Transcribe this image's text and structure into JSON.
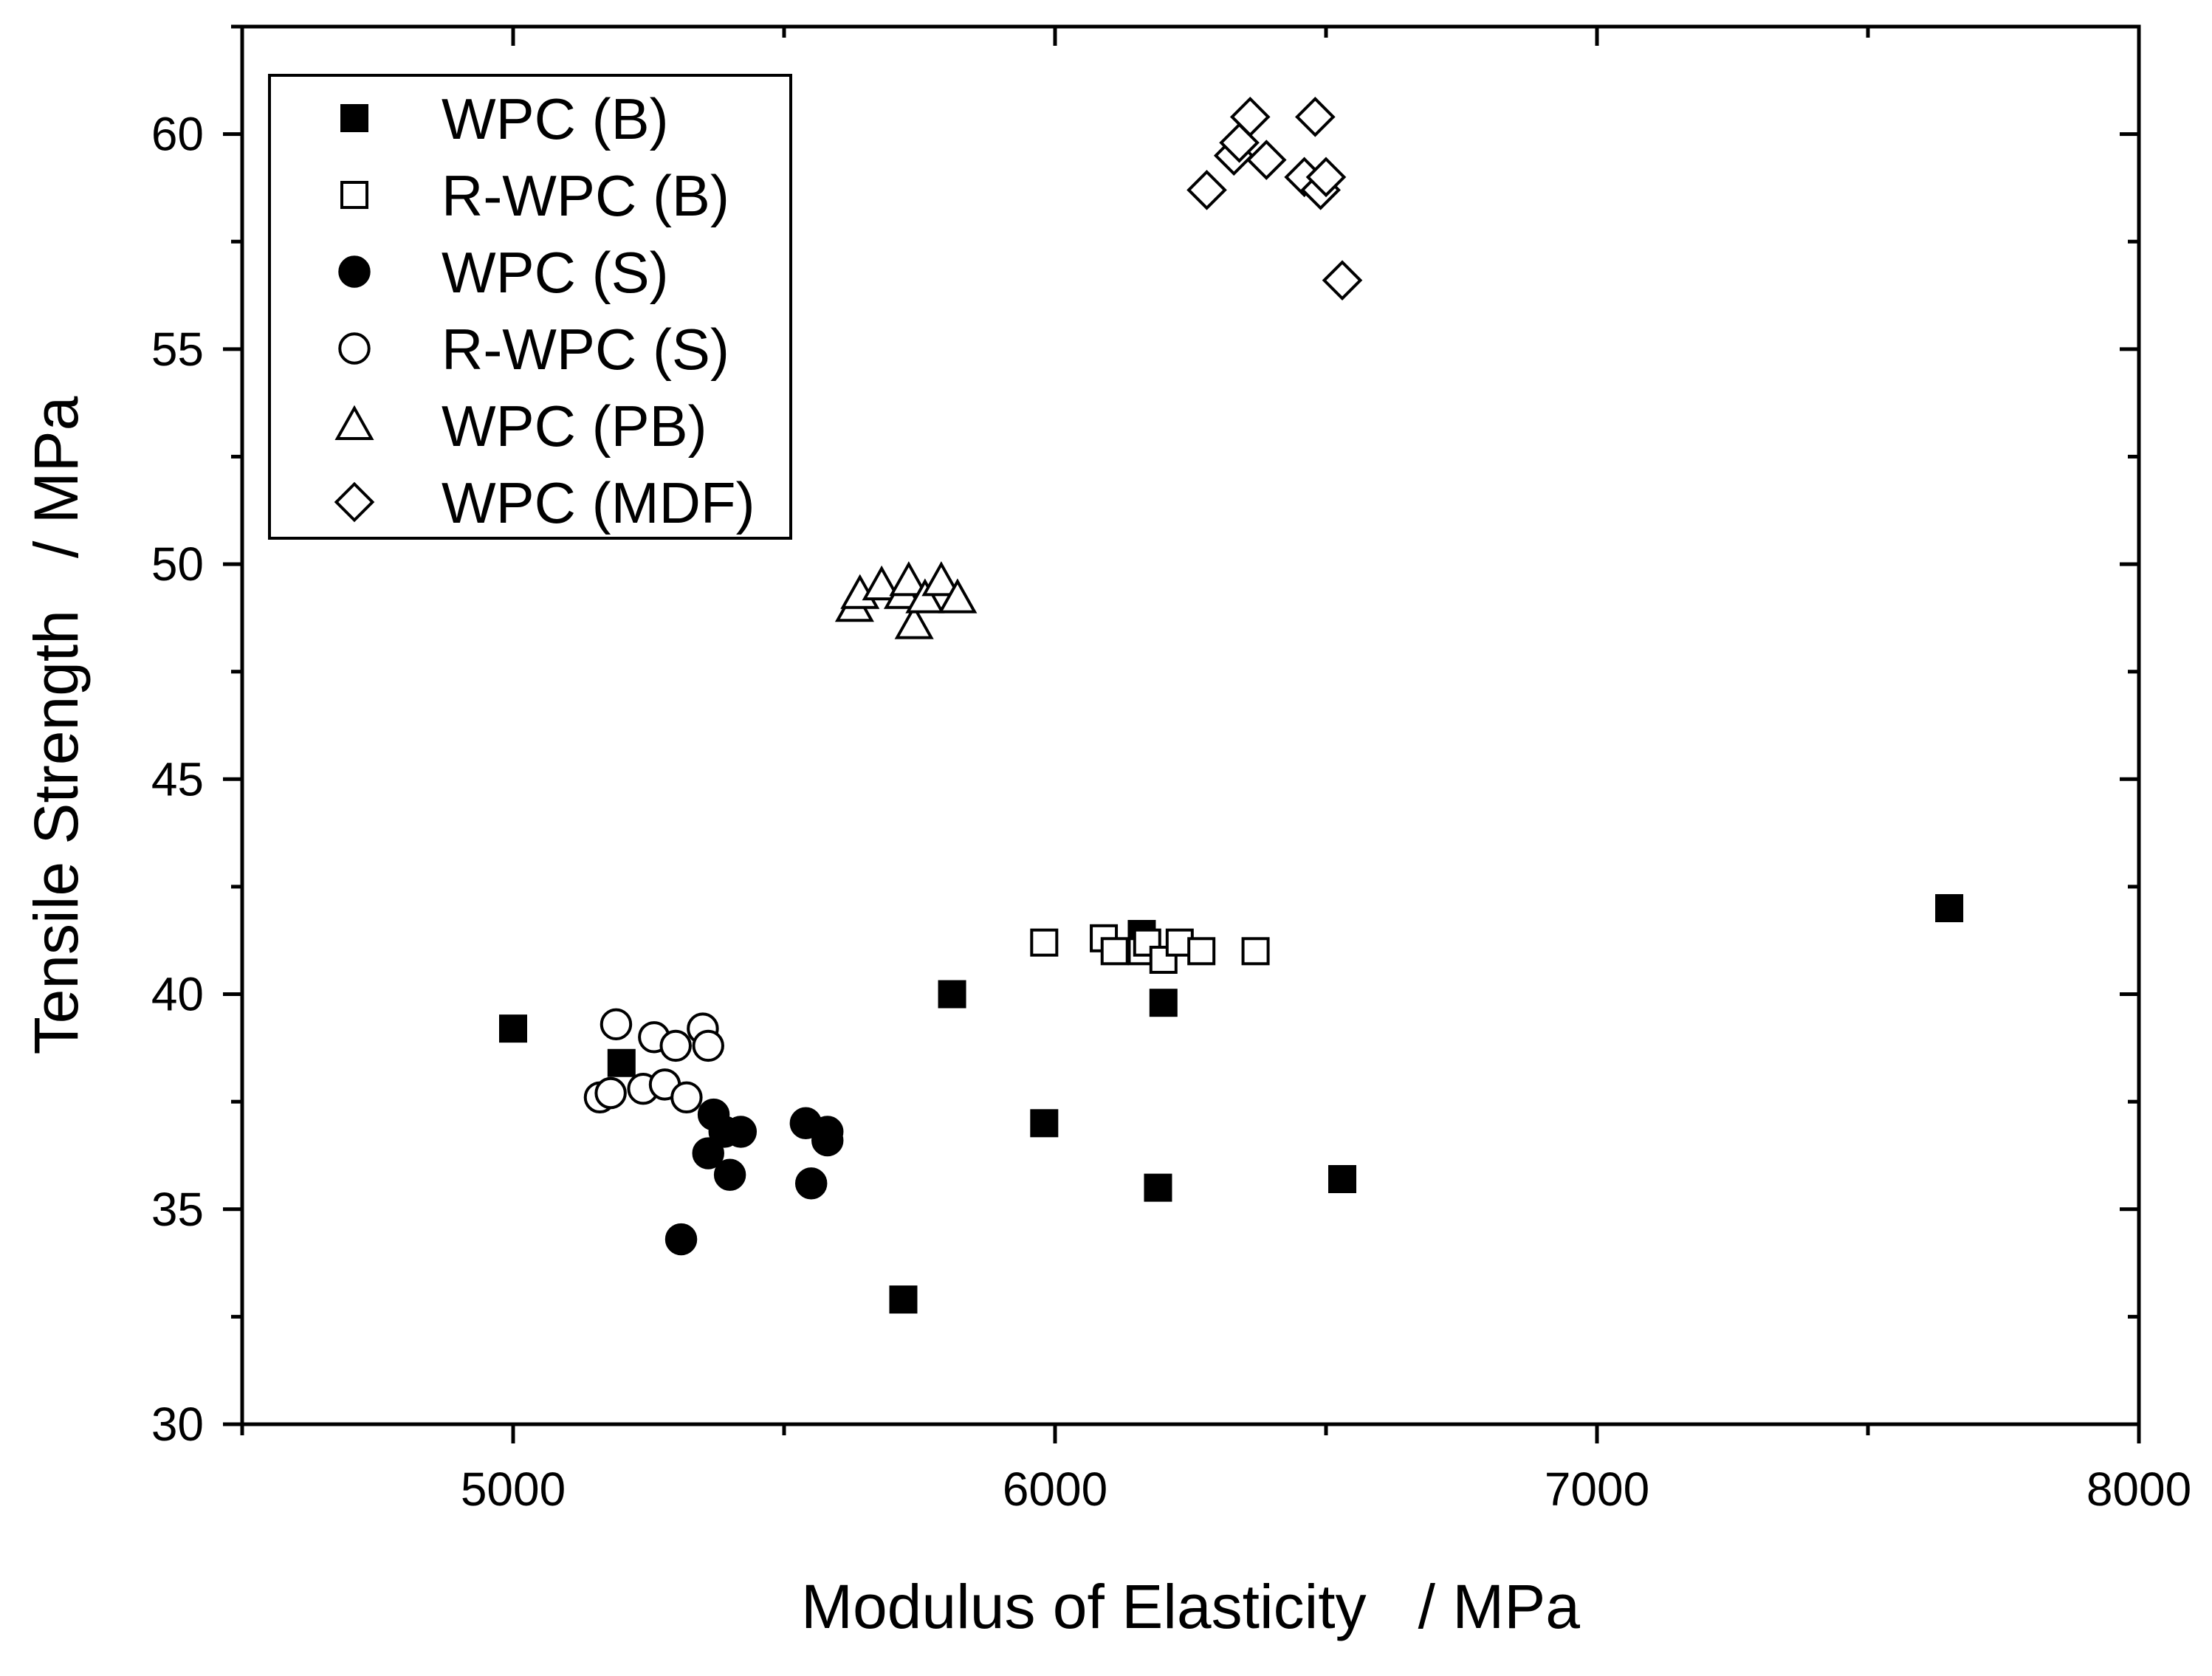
{
  "chart_data": {
    "type": "scatter",
    "xlabel": "Modulus of Elasticity   / MPa",
    "ylabel": "Tensile Strength   / MPa",
    "xlim": [
      4500,
      8000
    ],
    "ylim": [
      30,
      62.5
    ],
    "x_ticks": [
      5000,
      6000,
      7000,
      8000
    ],
    "y_ticks": [
      30,
      35,
      40,
      45,
      50,
      55,
      60
    ],
    "x_minor_ticks": [
      4500,
      5500,
      6500,
      7500
    ],
    "y_minor_ticks": [
      32.5,
      37.5,
      42.5,
      47.5,
      52.5,
      57.5,
      62.5
    ],
    "legend_position": "top-left",
    "series": [
      {
        "name": "WPC (B)",
        "marker": "square-filled",
        "points": [
          [
            5000,
            39.2
          ],
          [
            5200,
            38.4
          ],
          [
            5720,
            32.9
          ],
          [
            5810,
            40.0
          ],
          [
            5980,
            37.0
          ],
          [
            6160,
            41.4
          ],
          [
            6190,
            35.5
          ],
          [
            6200,
            39.8
          ],
          [
            6530,
            35.7
          ],
          [
            7650,
            42.0
          ]
        ]
      },
      {
        "name": "R-WPC (B)",
        "marker": "square-open",
        "points": [
          [
            5980,
            41.2
          ],
          [
            6090,
            41.3
          ],
          [
            6110,
            41.0
          ],
          [
            6160,
            41.0
          ],
          [
            6170,
            41.2
          ],
          [
            6200,
            40.8
          ],
          [
            6230,
            41.2
          ],
          [
            6270,
            41.0
          ],
          [
            6370,
            41.0
          ]
        ]
      },
      {
        "name": "WPC (S)",
        "marker": "circle-filled",
        "points": [
          [
            5310,
            34.3
          ],
          [
            5360,
            36.3
          ],
          [
            5370,
            37.2
          ],
          [
            5390,
            36.8
          ],
          [
            5400,
            35.8
          ],
          [
            5420,
            36.8
          ],
          [
            5540,
            37.0
          ],
          [
            5550,
            35.6
          ],
          [
            5580,
            36.8
          ],
          [
            5580,
            36.6
          ]
        ]
      },
      {
        "name": "R-WPC (S)",
        "marker": "circle-open",
        "points": [
          [
            5160,
            37.6
          ],
          [
            5180,
            37.7
          ],
          [
            5190,
            39.3
          ],
          [
            5240,
            37.8
          ],
          [
            5260,
            39.0
          ],
          [
            5280,
            37.9
          ],
          [
            5300,
            38.8
          ],
          [
            5320,
            37.6
          ],
          [
            5350,
            39.2
          ],
          [
            5360,
            38.8
          ]
        ]
      },
      {
        "name": "WPC (PB)",
        "marker": "triangle-open",
        "points": [
          [
            5630,
            49.0
          ],
          [
            5640,
            49.3
          ],
          [
            5680,
            49.5
          ],
          [
            5720,
            49.3
          ],
          [
            5730,
            49.6
          ],
          [
            5740,
            48.6
          ],
          [
            5760,
            49.2
          ],
          [
            5790,
            49.6
          ],
          [
            5820,
            49.2
          ]
        ]
      },
      {
        "name": "WPC (MDF)",
        "marker": "diamond-open",
        "points": [
          [
            6280,
            58.7
          ],
          [
            6330,
            59.5
          ],
          [
            6340,
            59.8
          ],
          [
            6360,
            60.4
          ],
          [
            6390,
            59.4
          ],
          [
            6460,
            59.0
          ],
          [
            6480,
            60.4
          ],
          [
            6490,
            58.7
          ],
          [
            6500,
            59.0
          ],
          [
            6530,
            56.6
          ]
        ]
      }
    ]
  }
}
